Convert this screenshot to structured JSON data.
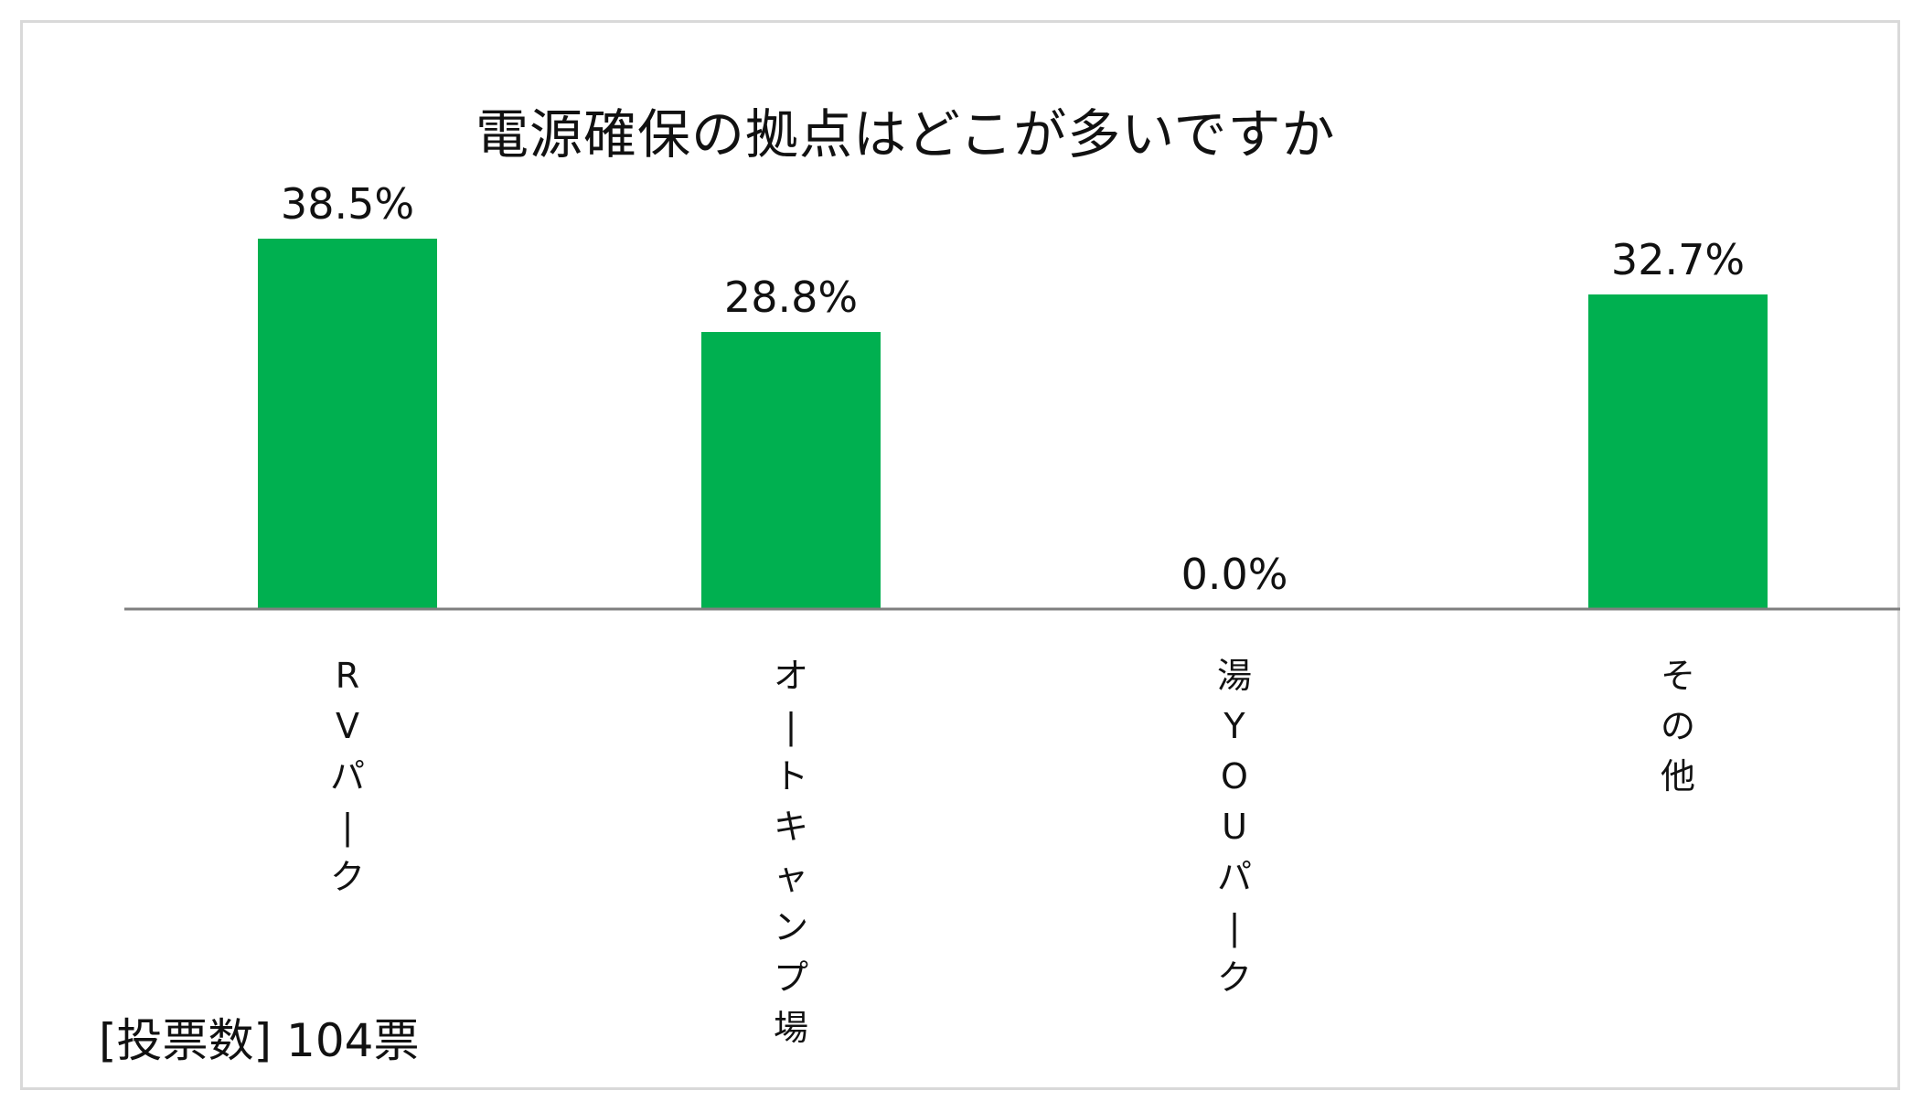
{
  "title": "電源確保の拠点はどこが多いですか",
  "footer": {
    "vote_label": "[投票数]",
    "vote_value": "104票"
  },
  "colors": {
    "bar": "#00b050",
    "axis": "#7f7f7f",
    "text": "#111111",
    "frame": "#d9d9d9"
  },
  "chart_data": {
    "type": "bar",
    "title": "電源確保の拠点はどこが多いですか",
    "categories": [
      "RVパーク",
      "オートキャンプ場",
      "湯YOUパーク",
      "その他"
    ],
    "category_labels_vertical": [
      [
        "R",
        "V",
        "パ",
        "|",
        "ク"
      ],
      [
        "オ",
        "|",
        "ト",
        "キ",
        "ャ",
        "ン",
        "プ",
        "場"
      ],
      [
        "湯",
        "Y",
        "O",
        "U",
        "パ",
        "|",
        "ク"
      ],
      [
        "そ",
        "の",
        "他"
      ]
    ],
    "values": [
      38.5,
      28.8,
      0.0,
      32.7
    ],
    "data_labels": [
      "38.5%",
      "28.8%",
      "0.0%",
      "32.7%"
    ],
    "unit": "%",
    "ylim": [
      0,
      50
    ],
    "grid": false,
    "legend": "none"
  }
}
